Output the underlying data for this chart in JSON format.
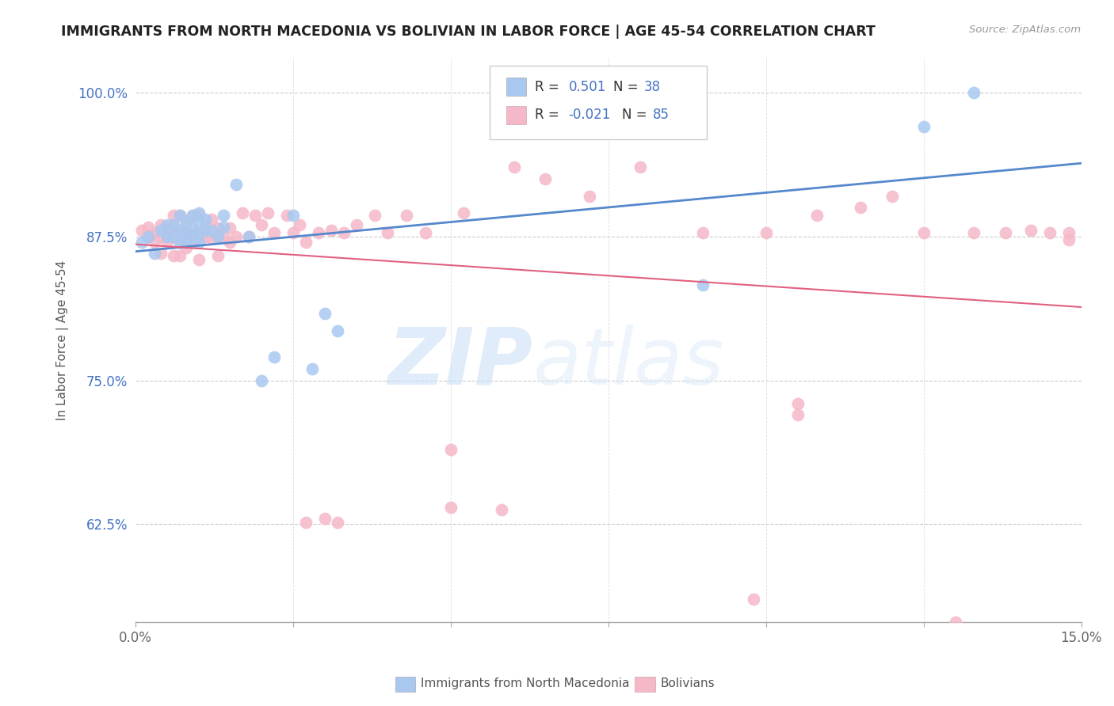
{
  "title": "IMMIGRANTS FROM NORTH MACEDONIA VS BOLIVIAN IN LABOR FORCE | AGE 45-54 CORRELATION CHART",
  "source": "Source: ZipAtlas.com",
  "ylabel": "In Labor Force | Age 45-54",
  "xlim": [
    0.0,
    0.15
  ],
  "ylim": [
    0.54,
    1.03
  ],
  "xticks": [
    0.0,
    0.025,
    0.05,
    0.075,
    0.1,
    0.125,
    0.15
  ],
  "xticklabels": [
    "0.0%",
    "",
    "",
    "",
    "",
    "",
    "15.0%"
  ],
  "yticks": [
    0.625,
    0.75,
    0.875,
    1.0
  ],
  "yticklabels": [
    "62.5%",
    "75.0%",
    "87.5%",
    "100.0%"
  ],
  "blue_color": "#a8c8f0",
  "pink_color": "#f5b8c8",
  "blue_line_color": "#5588cc",
  "pink_line_color": "#e06080",
  "watermark_zip": "ZIP",
  "watermark_atlas": "atlas",
  "blue_points_x": [
    0.001,
    0.002,
    0.003,
    0.004,
    0.005,
    0.005,
    0.006,
    0.006,
    0.007,
    0.007,
    0.007,
    0.008,
    0.008,
    0.008,
    0.009,
    0.009,
    0.009,
    0.01,
    0.01,
    0.01,
    0.01,
    0.011,
    0.011,
    0.012,
    0.013,
    0.014,
    0.014,
    0.016,
    0.018,
    0.02,
    0.022,
    0.025,
    0.028,
    0.03,
    0.032,
    0.09,
    0.125,
    0.133
  ],
  "blue_points_y": [
    0.87,
    0.875,
    0.86,
    0.88,
    0.875,
    0.885,
    0.875,
    0.885,
    0.87,
    0.88,
    0.893,
    0.87,
    0.878,
    0.888,
    0.875,
    0.882,
    0.893,
    0.87,
    0.878,
    0.888,
    0.895,
    0.88,
    0.89,
    0.88,
    0.875,
    0.883,
    0.893,
    0.92,
    0.875,
    0.75,
    0.77,
    0.893,
    0.76,
    0.808,
    0.793,
    0.833,
    0.97,
    1.0
  ],
  "pink_points_x": [
    0.001,
    0.002,
    0.002,
    0.003,
    0.003,
    0.004,
    0.004,
    0.004,
    0.005,
    0.005,
    0.005,
    0.006,
    0.006,
    0.006,
    0.006,
    0.007,
    0.007,
    0.007,
    0.007,
    0.008,
    0.008,
    0.008,
    0.008,
    0.009,
    0.009,
    0.009,
    0.01,
    0.01,
    0.01,
    0.011,
    0.011,
    0.012,
    0.012,
    0.013,
    0.013,
    0.013,
    0.014,
    0.015,
    0.015,
    0.016,
    0.017,
    0.018,
    0.019,
    0.02,
    0.021,
    0.022,
    0.024,
    0.025,
    0.026,
    0.027,
    0.029,
    0.031,
    0.033,
    0.035,
    0.038,
    0.04,
    0.043,
    0.046,
    0.05,
    0.052,
    0.06,
    0.065,
    0.072,
    0.08,
    0.09,
    0.1,
    0.105,
    0.108,
    0.115,
    0.12,
    0.125,
    0.13,
    0.133,
    0.138,
    0.142,
    0.145,
    0.148,
    0.098,
    0.05,
    0.058,
    0.027,
    0.03,
    0.032,
    0.105,
    0.148
  ],
  "pink_points_y": [
    0.88,
    0.875,
    0.883,
    0.87,
    0.878,
    0.86,
    0.875,
    0.885,
    0.87,
    0.878,
    0.883,
    0.858,
    0.875,
    0.883,
    0.893,
    0.858,
    0.87,
    0.88,
    0.893,
    0.865,
    0.872,
    0.878,
    0.888,
    0.87,
    0.878,
    0.893,
    0.855,
    0.875,
    0.893,
    0.875,
    0.882,
    0.873,
    0.89,
    0.858,
    0.875,
    0.882,
    0.875,
    0.87,
    0.882,
    0.875,
    0.895,
    0.875,
    0.893,
    0.885,
    0.895,
    0.878,
    0.893,
    0.878,
    0.885,
    0.87,
    0.878,
    0.88,
    0.878,
    0.885,
    0.893,
    0.878,
    0.893,
    0.878,
    0.69,
    0.895,
    0.935,
    0.925,
    0.91,
    0.935,
    0.878,
    0.878,
    0.72,
    0.893,
    0.9,
    0.91,
    0.878,
    0.54,
    0.878,
    0.878,
    0.88,
    0.878,
    0.878,
    0.56,
    0.64,
    0.638,
    0.627,
    0.63,
    0.627,
    0.73,
    0.872
  ]
}
